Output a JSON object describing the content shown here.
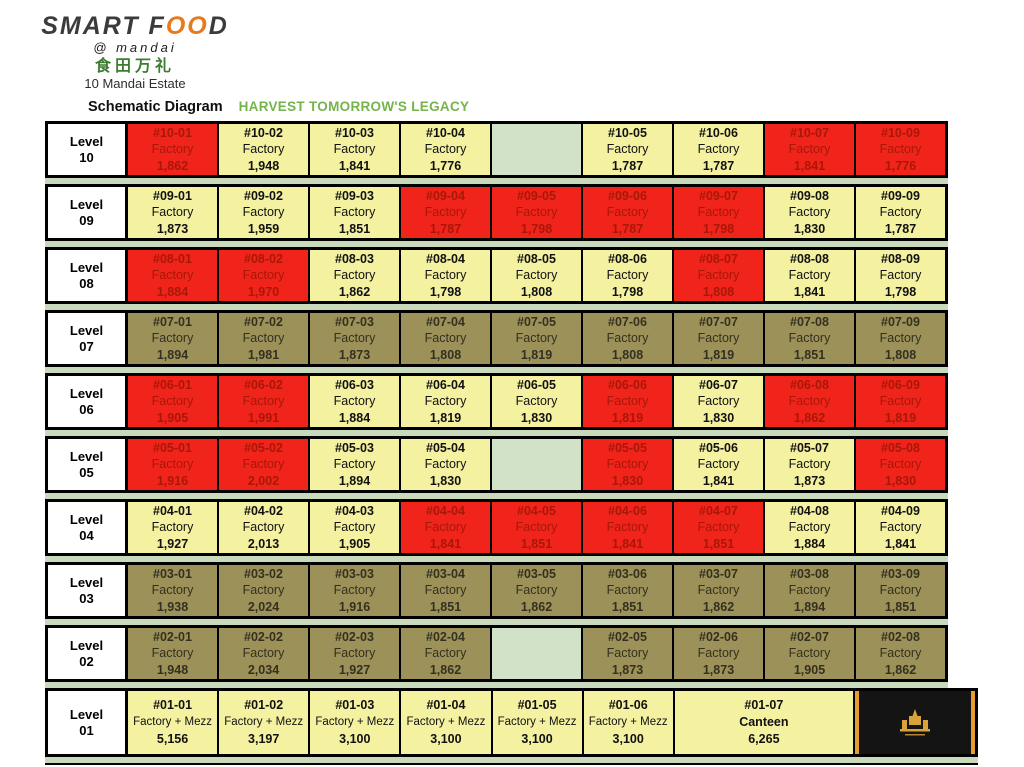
{
  "brand": {
    "part1": "SMART F",
    "o1": "O",
    "o2": "O",
    "part2": "D",
    "at_line": "@ mandai",
    "chinese": "食田万礼",
    "address": "10 Mandai Estate"
  },
  "header": {
    "diagram_label": "Schematic Diagram",
    "tagline": "HARVEST TOMORROW'S LEGACY"
  },
  "palette": {
    "red_bg": "#f0241a",
    "red_text": "#a91708",
    "yellow_bg": "#f4f1a1",
    "yellow_text": "#111111",
    "olive_bg": "#9c9259",
    "olive_text": "#33301f",
    "empty_bg": "#d2e2c8",
    "gap_strip": "#c8d9bc",
    "border": "#000000",
    "logo_box_bg": "#141414",
    "logo_accent": "#e89b2e",
    "logo_gold": "#d9a33c"
  },
  "levels": [
    {
      "label_line1": "Level",
      "label_line2": "10",
      "cells": [
        {
          "unit": "#10-01",
          "type": "Factory",
          "area": "1,862",
          "status": "red"
        },
        {
          "unit": "#10-02",
          "type": "Factory",
          "area": "1,948",
          "status": "yellow"
        },
        {
          "unit": "#10-03",
          "type": "Factory",
          "area": "1,841",
          "status": "yellow"
        },
        {
          "unit": "#10-04",
          "type": "Factory",
          "area": "1,776",
          "status": "yellow"
        },
        {
          "status": "empty"
        },
        {
          "unit": "#10-05",
          "type": "Factory",
          "area": "1,787",
          "status": "yellow"
        },
        {
          "unit": "#10-06",
          "type": "Factory",
          "area": "1,787",
          "status": "yellow"
        },
        {
          "unit": "#10-07",
          "type": "Factory",
          "area": "1,841",
          "status": "red"
        },
        {
          "unit": "#10-09",
          "type": "Factory",
          "area": "1,776",
          "status": "red"
        }
      ]
    },
    {
      "label_line1": "Level",
      "label_line2": "09",
      "cells": [
        {
          "unit": "#09-01",
          "type": "Factory",
          "area": "1,873",
          "status": "yellow"
        },
        {
          "unit": "#09-02",
          "type": "Factory",
          "area": "1,959",
          "status": "yellow"
        },
        {
          "unit": "#09-03",
          "type": "Factory",
          "area": "1,851",
          "status": "yellow"
        },
        {
          "unit": "#09-04",
          "type": "Factory",
          "area": "1,787",
          "status": "red"
        },
        {
          "unit": "#09-05",
          "type": "Factory",
          "area": "1,798",
          "status": "red"
        },
        {
          "unit": "#09-06",
          "type": "Factory",
          "area": "1,787",
          "status": "red"
        },
        {
          "unit": "#09-07",
          "type": "Factory",
          "area": "1,798",
          "status": "red"
        },
        {
          "unit": "#09-08",
          "type": "Factory",
          "area": "1,830",
          "status": "yellow"
        },
        {
          "unit": "#09-09",
          "type": "Factory",
          "area": "1,787",
          "status": "yellow"
        }
      ]
    },
    {
      "label_line1": "Level",
      "label_line2": "08",
      "cells": [
        {
          "unit": "#08-01",
          "type": "Factory",
          "area": "1,884",
          "status": "red"
        },
        {
          "unit": "#08-02",
          "type": "Factory",
          "area": "1,970",
          "status": "red"
        },
        {
          "unit": "#08-03",
          "type": "Factory",
          "area": "1,862",
          "status": "yellow"
        },
        {
          "unit": "#08-04",
          "type": "Factory",
          "area": "1,798",
          "status": "yellow"
        },
        {
          "unit": "#08-05",
          "type": "Factory",
          "area": "1,808",
          "status": "yellow"
        },
        {
          "unit": "#08-06",
          "type": "Factory",
          "area": "1,798",
          "status": "yellow"
        },
        {
          "unit": "#08-07",
          "type": "Factory",
          "area": "1,808",
          "status": "red"
        },
        {
          "unit": "#08-08",
          "type": "Factory",
          "area": "1,841",
          "status": "yellow"
        },
        {
          "unit": "#08-09",
          "type": "Factory",
          "area": "1,798",
          "status": "yellow"
        }
      ]
    },
    {
      "label_line1": "Level",
      "label_line2": "07",
      "cells": [
        {
          "unit": "#07-01",
          "type": "Factory",
          "area": "1,894",
          "status": "olive"
        },
        {
          "unit": "#07-02",
          "type": "Factory",
          "area": "1,981",
          "status": "olive"
        },
        {
          "unit": "#07-03",
          "type": "Factory",
          "area": "1,873",
          "status": "olive"
        },
        {
          "unit": "#07-04",
          "type": "Factory",
          "area": "1,808",
          "status": "olive"
        },
        {
          "unit": "#07-05",
          "type": "Factory",
          "area": "1,819",
          "status": "olive"
        },
        {
          "unit": "#07-06",
          "type": "Factory",
          "area": "1,808",
          "status": "olive"
        },
        {
          "unit": "#07-07",
          "type": "Factory",
          "area": "1,819",
          "status": "olive"
        },
        {
          "unit": "#07-08",
          "type": "Factory",
          "area": "1,851",
          "status": "olive"
        },
        {
          "unit": "#07-09",
          "type": "Factory",
          "area": "1,808",
          "status": "olive"
        }
      ]
    },
    {
      "label_line1": "Level",
      "label_line2": "06",
      "cells": [
        {
          "unit": "#06-01",
          "type": "Factory",
          "area": "1,905",
          "status": "red"
        },
        {
          "unit": "#06-02",
          "type": "Factory",
          "area": "1,991",
          "status": "red"
        },
        {
          "unit": "#06-03",
          "type": "Factory",
          "area": "1,884",
          "status": "yellow"
        },
        {
          "unit": "#06-04",
          "type": "Factory",
          "area": "1,819",
          "status": "yellow"
        },
        {
          "unit": "#06-05",
          "type": "Factory",
          "area": "1,830",
          "status": "yellow"
        },
        {
          "unit": "#06-06",
          "type": "Factory",
          "area": "1,819",
          "status": "red"
        },
        {
          "unit": "#06-07",
          "type": "Factory",
          "area": "1,830",
          "status": "yellow"
        },
        {
          "unit": "#06-08",
          "type": "Factory",
          "area": "1,862",
          "status": "red"
        },
        {
          "unit": "#06-09",
          "type": "Factory",
          "area": "1,819",
          "status": "red"
        }
      ]
    },
    {
      "label_line1": "Level",
      "label_line2": "05",
      "cells": [
        {
          "unit": "#05-01",
          "type": "Factory",
          "area": "1,916",
          "status": "red"
        },
        {
          "unit": "#05-02",
          "type": "Factory",
          "area": "2,002",
          "status": "red"
        },
        {
          "unit": "#05-03",
          "type": "Factory",
          "area": "1,894",
          "status": "yellow"
        },
        {
          "unit": "#05-04",
          "type": "Factory",
          "area": "1,830",
          "status": "yellow"
        },
        {
          "status": "empty"
        },
        {
          "unit": "#05-05",
          "type": "Factory",
          "area": "1,830",
          "status": "red"
        },
        {
          "unit": "#05-06",
          "type": "Factory",
          "area": "1,841",
          "status": "yellow"
        },
        {
          "unit": "#05-07",
          "type": "Factory",
          "area": "1,873",
          "status": "yellow"
        },
        {
          "unit": "#05-08",
          "type": "Factory",
          "area": "1,830",
          "status": "red"
        }
      ]
    },
    {
      "label_line1": "Level",
      "label_line2": "04",
      "cells": [
        {
          "unit": "#04-01",
          "type": "Factory",
          "area": "1,927",
          "status": "yellow"
        },
        {
          "unit": "#04-02",
          "type": "Factory",
          "area": "2,013",
          "status": "yellow"
        },
        {
          "unit": "#04-03",
          "type": "Factory",
          "area": "1,905",
          "status": "yellow"
        },
        {
          "unit": "#04-04",
          "type": "Factory",
          "area": "1,841",
          "status": "red"
        },
        {
          "unit": "#04-05",
          "type": "Factory",
          "area": "1,851",
          "status": "red"
        },
        {
          "unit": "#04-06",
          "type": "Factory",
          "area": "1,841",
          "status": "red"
        },
        {
          "unit": "#04-07",
          "type": "Factory",
          "area": "1,851",
          "status": "red"
        },
        {
          "unit": "#04-08",
          "type": "Factory",
          "area": "1,884",
          "status": "yellow"
        },
        {
          "unit": "#04-09",
          "type": "Factory",
          "area": "1,841",
          "status": "yellow"
        }
      ]
    },
    {
      "label_line1": "Level",
      "label_line2": "03",
      "cells": [
        {
          "unit": "#03-01",
          "type": "Factory",
          "area": "1,938",
          "status": "olive"
        },
        {
          "unit": "#03-02",
          "type": "Factory",
          "area": "2,024",
          "status": "olive"
        },
        {
          "unit": "#03-03",
          "type": "Factory",
          "area": "1,916",
          "status": "olive"
        },
        {
          "unit": "#03-04",
          "type": "Factory",
          "area": "1,851",
          "status": "olive"
        },
        {
          "unit": "#03-05",
          "type": "Factory",
          "area": "1,862",
          "status": "olive"
        },
        {
          "unit": "#03-06",
          "type": "Factory",
          "area": "1,851",
          "status": "olive"
        },
        {
          "unit": "#03-07",
          "type": "Factory",
          "area": "1,862",
          "status": "olive"
        },
        {
          "unit": "#03-08",
          "type": "Factory",
          "area": "1,894",
          "status": "olive"
        },
        {
          "unit": "#03-09",
          "type": "Factory",
          "area": "1,851",
          "status": "olive"
        }
      ]
    },
    {
      "label_line1": "Level",
      "label_line2": "02",
      "cells": [
        {
          "unit": "#02-01",
          "type": "Factory",
          "area": "1,948",
          "status": "olive"
        },
        {
          "unit": "#02-02",
          "type": "Factory",
          "area": "2,034",
          "status": "olive"
        },
        {
          "unit": "#02-03",
          "type": "Factory",
          "area": "1,927",
          "status": "olive"
        },
        {
          "unit": "#02-04",
          "type": "Factory",
          "area": "1,862",
          "status": "olive"
        },
        {
          "status": "empty"
        },
        {
          "unit": "#02-05",
          "type": "Factory",
          "area": "1,873",
          "status": "olive"
        },
        {
          "unit": "#02-06",
          "type": "Factory",
          "area": "1,873",
          "status": "olive"
        },
        {
          "unit": "#02-07",
          "type": "Factory",
          "area": "1,905",
          "status": "olive"
        },
        {
          "unit": "#02-08",
          "type": "Factory",
          "area": "1,862",
          "status": "olive"
        }
      ]
    },
    {
      "label_line1": "Level",
      "label_line2": "01",
      "wide": true,
      "cells": [
        {
          "unit": "#01-01",
          "type": "Factory + Mezz",
          "area": "5,156",
          "status": "yellow"
        },
        {
          "unit": "#01-02",
          "type": "Factory + Mezz",
          "area": "3,197",
          "status": "yellow"
        },
        {
          "unit": "#01-03",
          "type": "Factory + Mezz",
          "area": "3,100",
          "status": "yellow"
        },
        {
          "unit": "#01-04",
          "type": "Factory + Mezz",
          "area": "3,100",
          "status": "yellow"
        },
        {
          "unit": "#01-05",
          "type": "Factory + Mezz",
          "area": "3,100",
          "status": "yellow"
        },
        {
          "unit": "#01-06",
          "type": "Factory + Mezz",
          "area": "3,100",
          "status": "yellow"
        },
        {
          "unit": "#01-07",
          "type": "Canteen",
          "area": "6,265",
          "status": "yellow",
          "span": 2,
          "emphasis": true
        },
        {
          "status": "logo"
        }
      ]
    }
  ]
}
